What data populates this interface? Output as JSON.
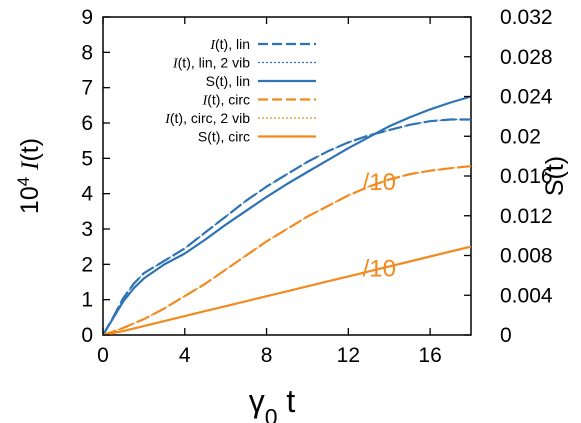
{
  "chart_data": {
    "type": "line",
    "xlabel_main": "γ",
    "xlabel_sub": "0",
    "xlabel_tail": " t",
    "ylabel_left_prefix": "10",
    "ylabel_left_exp": "4",
    "ylabel_left_symbol": "I",
    "ylabel_left_suffix": "(t)",
    "ylabel_right": "S(t)",
    "xlim": [
      0,
      18
    ],
    "ylim_left": [
      0,
      9
    ],
    "ylim_right": [
      0,
      0.032
    ],
    "xticks": [
      {
        "value": 0,
        "label": "0"
      },
      {
        "value": 4,
        "label": "4"
      },
      {
        "value": 8,
        "label": "8"
      },
      {
        "value": 12,
        "label": "12"
      },
      {
        "value": 16,
        "label": "16"
      }
    ],
    "yticks_left": [
      {
        "value": 0,
        "label": "0"
      },
      {
        "value": 1,
        "label": "1"
      },
      {
        "value": 2,
        "label": "2"
      },
      {
        "value": 3,
        "label": "3"
      },
      {
        "value": 4,
        "label": "4"
      },
      {
        "value": 5,
        "label": "5"
      },
      {
        "value": 6,
        "label": "6"
      },
      {
        "value": 7,
        "label": "7"
      },
      {
        "value": 8,
        "label": "8"
      },
      {
        "value": 9,
        "label": "9"
      }
    ],
    "yticks_right": [
      {
        "value": 0,
        "label": "0"
      },
      {
        "value": 0.004,
        "label": "0.004"
      },
      {
        "value": 0.008,
        "label": "0.008"
      },
      {
        "value": 0.012,
        "label": "0.012"
      },
      {
        "value": 0.016,
        "label": "0.016"
      },
      {
        "value": 0.02,
        "label": "0.02"
      },
      {
        "value": 0.024,
        "label": "0.024"
      },
      {
        "value": 0.028,
        "label": "0.028"
      },
      {
        "value": 0.032,
        "label": "0.032"
      }
    ],
    "colors": {
      "lin": "#2e74b5",
      "circ": "#f28a1e"
    },
    "series": [
      {
        "key": "I_lin",
        "legend_symbol": "I",
        "legend_rest": "(t), lin",
        "color": "lin",
        "dash": "long",
        "x": [
          0,
          0.5,
          1,
          1.5,
          2,
          3,
          4,
          5,
          6,
          7,
          8,
          9,
          10,
          11,
          12,
          13,
          14,
          15,
          16,
          17,
          18
        ],
        "y": [
          0,
          0.5,
          1.05,
          1.45,
          1.75,
          2.1,
          2.45,
          2.9,
          3.35,
          3.8,
          4.2,
          4.55,
          4.9,
          5.2,
          5.45,
          5.65,
          5.8,
          5.95,
          6.05,
          6.1,
          6.1
        ]
      },
      {
        "key": "I_lin_2vib",
        "legend_symbol": "I",
        "legend_rest": "(t), lin, 2 vib",
        "color": "lin",
        "dash": "dotted",
        "x": [
          0,
          0.5,
          1,
          1.5,
          2,
          3,
          4,
          5,
          6,
          7,
          8,
          9,
          10,
          11,
          12,
          13,
          14,
          15,
          16,
          17,
          18
        ],
        "y": [
          0,
          0.5,
          1.05,
          1.45,
          1.75,
          2.1,
          2.45,
          2.9,
          3.35,
          3.8,
          4.2,
          4.55,
          4.9,
          5.2,
          5.45,
          5.65,
          5.8,
          5.95,
          6.05,
          6.1,
          6.1
        ]
      },
      {
        "key": "S_lin",
        "legend_symbol": "",
        "legend_rest": "S(t), lin",
        "color": "lin",
        "dash": "solid",
        "axis": "right",
        "x": [
          0,
          0.5,
          1,
          1.5,
          2,
          3,
          4,
          5,
          6,
          7,
          8,
          9,
          10,
          11,
          12,
          13,
          14,
          15,
          16,
          17,
          18
        ],
        "y": [
          0,
          0.0017,
          0.0034,
          0.0047,
          0.0057,
          0.0071,
          0.0082,
          0.0096,
          0.0111,
          0.0125,
          0.0139,
          0.0152,
          0.0164,
          0.0176,
          0.0188,
          0.0199,
          0.021,
          0.0219,
          0.0227,
          0.0234,
          0.024
        ]
      },
      {
        "key": "I_circ",
        "legend_symbol": "I",
        "legend_rest": "(t), circ",
        "color": "circ",
        "dash": "long",
        "x": [
          0,
          1,
          2,
          3,
          4,
          5,
          6,
          7,
          8,
          9,
          10,
          11,
          12,
          13,
          14,
          15,
          16,
          17,
          18
        ],
        "y": [
          0,
          0.2,
          0.45,
          0.75,
          1.1,
          1.45,
          1.85,
          2.25,
          2.65,
          3.0,
          3.35,
          3.65,
          3.95,
          4.2,
          4.4,
          4.55,
          4.65,
          4.72,
          4.78
        ]
      },
      {
        "key": "I_circ_2vib",
        "legend_symbol": "I",
        "legend_rest": "(t), circ, 2 vib",
        "color": "circ",
        "dash": "dotted",
        "x": [
          0,
          1,
          2,
          3,
          4,
          5,
          6,
          7,
          8,
          9,
          10,
          11,
          12,
          13,
          14,
          15,
          16,
          17,
          18
        ],
        "y": [
          0,
          0.2,
          0.45,
          0.75,
          1.1,
          1.45,
          1.85,
          2.25,
          2.65,
          3.0,
          3.35,
          3.65,
          3.95,
          4.2,
          4.4,
          4.55,
          4.65,
          4.72,
          4.78
        ]
      },
      {
        "key": "S_circ",
        "legend_symbol": "",
        "legend_rest": "S(t), circ",
        "color": "circ",
        "dash": "solid",
        "axis": "right",
        "x": [
          0,
          1,
          2,
          3,
          4,
          5,
          6,
          7,
          8,
          9,
          10,
          11,
          12,
          13,
          14,
          15,
          16,
          17,
          18
        ],
        "y": [
          0,
          0.0004,
          0.0009,
          0.0014,
          0.0019,
          0.0024,
          0.0029,
          0.0034,
          0.0039,
          0.0044,
          0.0049,
          0.0054,
          0.0059,
          0.0064,
          0.0069,
          0.0074,
          0.0079,
          0.0084,
          0.0089
        ]
      }
    ],
    "annotations": [
      {
        "text": "/10",
        "x": 12.7,
        "y": 4.1,
        "color": "circ"
      },
      {
        "text": "/10",
        "x": 12.7,
        "y": 1.65,
        "color": "circ"
      }
    ]
  }
}
